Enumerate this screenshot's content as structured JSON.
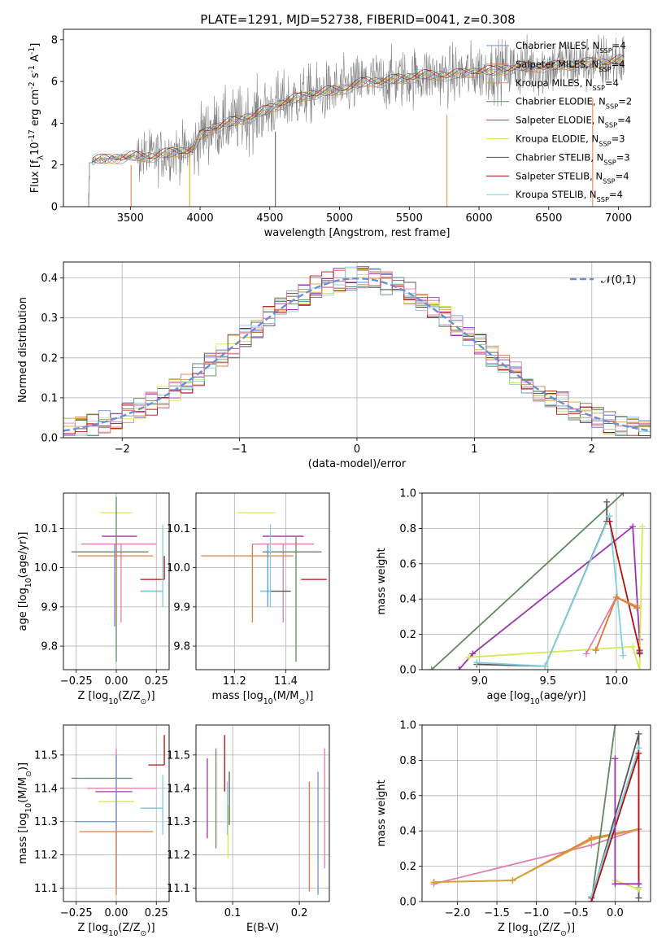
{
  "figure": {
    "title": "PLATE=1291, MJD=52738, FIBERID=0041, z=0.308"
  },
  "colors": [
    "#6b8fd6",
    "#e07a45",
    "#d9a030",
    "#5f8a5f",
    "#9a35b0",
    "#d8e850",
    "#555555",
    "#b01010",
    "#80d0e0",
    "#e080b0",
    "#707070"
  ],
  "chart_data": [
    {
      "id": "spectrum",
      "type": "line",
      "xlabel": "wavelength [Angstrom, rest frame]",
      "ylabel": "Flux [f$_\\lambda$10$^{-17}$ erg cm$^{-2}$ s$^{-1}$ A$^{-1}$]",
      "xlim": [
        3020,
        7230
      ],
      "ylim": [
        0,
        8.5
      ],
      "xticks": [
        3500,
        4000,
        4500,
        5000,
        5500,
        6000,
        6500,
        7000
      ],
      "yticks": [
        0,
        2,
        4,
        6,
        8
      ],
      "grid": false,
      "legend_placement": "top-right",
      "observed_continuum": {
        "x": [
          3200,
          3350,
          3500,
          3650,
          3800,
          3950,
          4000,
          4100,
          4200,
          4300,
          4400,
          4500,
          4600,
          4700,
          4800,
          4900,
          5000,
          5100,
          5200,
          5300,
          5400,
          5500,
          5600,
          5700,
          5800,
          5900,
          6000,
          6100,
          6200,
          6300,
          6400,
          6500,
          6600,
          6700,
          6800,
          6900,
          7000,
          7040
        ],
        "y": [
          2.2,
          2.3,
          2.4,
          2.4,
          2.6,
          2.7,
          3.4,
          3.8,
          4.0,
          4.2,
          4.4,
          4.7,
          5.0,
          5.2,
          5.4,
          5.5,
          5.6,
          5.8,
          6.0,
          6.0,
          6.1,
          6.2,
          6.3,
          6.3,
          6.3,
          6.4,
          6.5,
          6.5,
          6.6,
          6.7,
          6.7,
          6.7,
          6.8,
          6.8,
          6.9,
          6.9,
          7.0,
          7.0
        ]
      },
      "series": [
        {
          "name": "Chabrier MILES, N$_{SSP}$=4",
          "color": "#6b8fd6"
        },
        {
          "name": "Salpeter MILES, N$_{SSP}$=4",
          "color": "#e07a45"
        },
        {
          "name": "Kroupa MILES, N$_{SSP}$=4",
          "color": "#d9a030"
        },
        {
          "name": "Chabrier ELODIE, N$_{SSP}$=2",
          "color": "#5f8a5f"
        },
        {
          "name": "Salpeter ELODIE, N$_{SSP}$=4",
          "color": "#9a35b0"
        },
        {
          "name": "Kroupa ELODIE, N$_{SSP}$=3",
          "color": "#d8e850"
        },
        {
          "name": "Chabrier STELIB, N$_{SSP}$=3",
          "color": "#555555"
        },
        {
          "name": "Salpeter STELIB, N$_{SSP}$=4",
          "color": "#b01010"
        },
        {
          "name": "Kroupa STELIB, N$_{SSP}$=4",
          "color": "#80d0e0"
        }
      ]
    },
    {
      "id": "residuals",
      "type": "line",
      "xlabel": "(data-model)/error",
      "ylabel": "Normed distribution",
      "xlim": [
        -2.5,
        2.5
      ],
      "ylim": [
        0,
        0.44
      ],
      "xticks": [
        -2,
        -1,
        0,
        1,
        2
      ],
      "yticks": [
        0.0,
        0.1,
        0.2,
        0.3,
        0.4
      ],
      "grid": true,
      "legend_placement": "top-right",
      "legend": "$\\mathcal{N}(0,1)$",
      "gaussian_color": "#6b8fd6",
      "histogram_bins": [
        -2.5,
        2.5,
        50
      ]
    },
    {
      "id": "age_vs_Z",
      "type": "scatter",
      "xlabel": "Z [log$_{10}$(Z/Z$_\\odot$)]",
      "ylabel": "age  [log$_{10}$(age/yr)]",
      "xlim": [
        -0.33,
        0.33
      ],
      "ylim": [
        9.74,
        10.19
      ],
      "xticks": [
        -0.25,
        0.0,
        0.25
      ],
      "yticks": [
        9.8,
        9.9,
        10.0,
        10.1
      ],
      "grid": true,
      "errorbars": [
        {
          "color": "#707070",
          "x": 0.0,
          "y": 10.14,
          "xerr": [
            0.0,
            0.0
          ],
          "yerr": [
            0.0,
            0.0
          ]
        },
        {
          "color": "#d8e850",
          "x": 0.0,
          "y": 10.14,
          "xerr": [
            0.1,
            0.1
          ],
          "yerr": [
            0.0,
            0.0
          ]
        },
        {
          "color": "#e080b0",
          "x": 0.03,
          "y": 10.06,
          "xerr": [
            0.25,
            0.22
          ],
          "yerr": [
            0.2,
            0.0
          ]
        },
        {
          "color": "#9a35b0",
          "x": 0.03,
          "y": 10.08,
          "xerr": [
            0.12,
            0.1
          ],
          "yerr": [
            0.0,
            0.0
          ]
        },
        {
          "color": "#5f8a5f",
          "x": 0.0,
          "y": 10.04,
          "xerr": [
            0.28,
            0.2
          ],
          "yerr": [
            0.28,
            0.14
          ]
        },
        {
          "color": "#e07a45",
          "x": 0.0,
          "y": 10.03,
          "xerr": [
            0.24,
            0.23
          ],
          "yerr": [
            0.17,
            0.03
          ]
        },
        {
          "color": "#b01010",
          "x": 0.3,
          "y": 9.97,
          "xerr": [
            0.15,
            0.0
          ],
          "yerr": [
            0.0,
            0.06
          ]
        },
        {
          "color": "#555555",
          "x": 0.29,
          "y": 9.94,
          "xerr": [
            0.14,
            0.0
          ],
          "yerr": [
            0.0,
            0.0
          ]
        },
        {
          "color": "#80d0e0",
          "x": 0.29,
          "y": 9.94,
          "xerr": [
            0.14,
            0.0
          ],
          "yerr": [
            0.04,
            0.17
          ]
        },
        {
          "color": "#6b8fd6",
          "x": -0.01,
          "y": 9.98,
          "xerr": [
            0.0,
            0.0
          ],
          "yerr": [
            0.13,
            0.08
          ]
        }
      ]
    },
    {
      "id": "age_vs_mass",
      "type": "scatter",
      "xlabel": "mass [log$_{10}$(M/M$_\\odot$)]",
      "ylabel": "",
      "xlim": [
        11.05,
        11.57
      ],
      "ylim": [
        9.74,
        10.19
      ],
      "xticks": [
        11.2,
        11.4
      ],
      "yticks": [
        9.8,
        9.9,
        10.0,
        10.1
      ],
      "grid": true,
      "errorbars": [
        {
          "color": "#d8e850",
          "x": 11.3,
          "y": 10.14,
          "xerr": [
            0.09,
            0.06
          ],
          "yerr": [
            0.0,
            0.0
          ]
        },
        {
          "color": "#e080b0",
          "x": 11.39,
          "y": 10.06,
          "xerr": [
            0.12,
            0.12
          ],
          "yerr": [
            0.2,
            0.0
          ]
        },
        {
          "color": "#9a35b0",
          "x": 11.39,
          "y": 10.08,
          "xerr": [
            0.08,
            0.08
          ],
          "yerr": [
            0.0,
            0.0
          ]
        },
        {
          "color": "#5f8a5f",
          "x": 11.44,
          "y": 10.04,
          "xerr": [
            0.13,
            0.1
          ],
          "yerr": [
            0.28,
            0.04
          ]
        },
        {
          "color": "#e07a45",
          "x": 11.27,
          "y": 10.03,
          "xerr": [
            0.2,
            0.16
          ],
          "yerr": [
            0.17,
            0.03
          ]
        },
        {
          "color": "#b01010",
          "x": 11.46,
          "y": 9.97,
          "xerr": [
            0.0,
            0.1
          ],
          "yerr": [
            0.0,
            0.0
          ]
        },
        {
          "color": "#555555",
          "x": 11.34,
          "y": 9.94,
          "xerr": [
            0.04,
            0.08
          ],
          "yerr": [
            0.0,
            0.0
          ]
        },
        {
          "color": "#80d0e0",
          "x": 11.34,
          "y": 9.94,
          "xerr": [
            0.04,
            0.0
          ],
          "yerr": [
            0.04,
            0.17
          ]
        },
        {
          "color": "#6b8fd6",
          "x": 11.33,
          "y": 9.98,
          "xerr": [
            0.0,
            0.0
          ],
          "yerr": [
            0.08,
            0.08
          ]
        }
      ]
    },
    {
      "id": "mass_weight_vs_age",
      "type": "line",
      "xlabel": "age  [log$_{10}$(age/yr)]",
      "ylabel": "mass weight",
      "xlim": [
        8.58,
        10.25
      ],
      "ylim": [
        0.0,
        1.0
      ],
      "xticks": [
        9.0,
        9.5,
        10.0
      ],
      "yticks": [
        0.0,
        0.2,
        0.4,
        0.6,
        0.8,
        1.0
      ],
      "grid": true,
      "series": [
        {
          "color": "#5f8a5f",
          "x": [
            8.65,
            10.05
          ],
          "y": [
            0.0,
            1.0
          ]
        },
        {
          "color": "#9a35b0",
          "x": [
            8.85,
            8.95,
            10.12,
            10.17,
            10.17
          ],
          "y": [
            0.0,
            0.09,
            0.81,
            0.17,
            0.1
          ]
        },
        {
          "color": "#d8e850",
          "x": [
            8.92,
            10.12,
            10.17,
            10.19
          ],
          "y": [
            0.07,
            0.13,
            0.0,
            0.81
          ]
        },
        {
          "color": "#555555",
          "x": [
            8.98,
            9.48,
            9.93,
            9.93
          ],
          "y": [
            0.03,
            0.02,
            0.84,
            0.95
          ]
        },
        {
          "color": "#80d0e0",
          "x": [
            8.98,
            9.48,
            9.95,
            10.05
          ],
          "y": [
            0.04,
            0.02,
            0.87,
            0.08
          ]
        },
        {
          "color": "#b01010",
          "x": [
            9.95,
            10.17,
            10.17
          ],
          "y": [
            0.84,
            0.11,
            0.09
          ]
        },
        {
          "color": "#e080b0",
          "x": [
            9.78,
            10.0,
            10.15
          ],
          "y": [
            0.09,
            0.41,
            0.35
          ]
        },
        {
          "color": "#d9a030",
          "x": [
            9.85,
            10.0,
            10.15
          ],
          "y": [
            0.11,
            0.41,
            0.36
          ]
        },
        {
          "color": "#e07a45",
          "x": [
            9.85,
            10.0,
            10.15
          ],
          "y": [
            0.11,
            0.41,
            0.35
          ]
        }
      ]
    },
    {
      "id": "mass_vs_Z",
      "type": "scatter",
      "xlabel": "Z [log$_{10}$(Z/Z$_\\odot$)]",
      "ylabel": "mass [log$_{10}$(M/M$_\\odot$)]",
      "xlim": [
        -0.33,
        0.33
      ],
      "ylim": [
        11.06,
        11.59
      ],
      "xticks": [
        -0.25,
        0.0,
        0.25
      ],
      "yticks": [
        11.1,
        11.2,
        11.3,
        11.4,
        11.5
      ],
      "grid": true,
      "errorbars": [
        {
          "color": "#b01010",
          "x": 0.3,
          "y": 11.47,
          "xerr": [
            0.1,
            0.0
          ],
          "yerr": [
            0.0,
            0.09
          ]
        },
        {
          "color": "#5f8a5f",
          "x": -0.1,
          "y": 11.43,
          "xerr": [
            0.18,
            0.2
          ],
          "yerr": [
            0.0,
            0.0
          ]
        },
        {
          "color": "#e080b0",
          "x": 0.0,
          "y": 11.4,
          "xerr": [
            0.18,
            0.25
          ],
          "yerr": [
            0.12,
            0.12
          ]
        },
        {
          "color": "#9a35b0",
          "x": 0.0,
          "y": 11.39,
          "xerr": [
            0.13,
            0.1
          ],
          "yerr": [
            0.0,
            0.0
          ]
        },
        {
          "color": "#d8e850",
          "x": 0.0,
          "y": 11.36,
          "xerr": [
            0.11,
            0.11
          ],
          "yerr": [
            0.15,
            0.0
          ]
        },
        {
          "color": "#555555",
          "x": 0.29,
          "y": 11.34,
          "xerr": [
            0.14,
            0.0
          ],
          "yerr": [
            0.0,
            0.0
          ]
        },
        {
          "color": "#80d0e0",
          "x": 0.29,
          "y": 11.34,
          "xerr": [
            0.14,
            0.0
          ],
          "yerr": [
            0.08,
            0.1
          ]
        },
        {
          "color": "#6b8fd6",
          "x": 0.0,
          "y": 11.3,
          "xerr": [
            0.26,
            0.0
          ],
          "yerr": [
            0.2,
            0.2
          ]
        },
        {
          "color": "#e07a45",
          "x": 0.0,
          "y": 11.27,
          "xerr": [
            0.23,
            0.23
          ],
          "yerr": [
            0.19,
            0.0
          ]
        }
      ]
    },
    {
      "id": "mass_vs_ebv",
      "type": "scatter",
      "xlabel": "E(B-V)",
      "ylabel": "",
      "xlim": [
        0.045,
        0.245
      ],
      "ylim": [
        11.06,
        11.59
      ],
      "xticks": [
        0.1,
        0.2
      ],
      "yticks": [
        11.1,
        11.2,
        11.3,
        11.4,
        11.5
      ],
      "grid": true,
      "errorbars": [
        {
          "color": "#9a35b0",
          "x": 0.062,
          "y": 11.37,
          "xerr": [
            0.0,
            0.0
          ],
          "yerr": [
            0.12,
            0.12
          ]
        },
        {
          "color": "#5f8a5f",
          "x": 0.075,
          "y": 11.37,
          "xerr": [
            0.0,
            0.0
          ],
          "yerr": [
            0.15,
            0.15
          ]
        },
        {
          "color": "#b01010",
          "x": 0.088,
          "y": 11.47,
          "xerr": [
            0.0,
            0.0
          ],
          "yerr": [
            0.08,
            0.09
          ]
        },
        {
          "color": "#d8e850",
          "x": 0.093,
          "y": 11.3,
          "xerr": [
            0.0,
            0.0
          ],
          "yerr": [
            0.11,
            0.05
          ]
        },
        {
          "color": "#555555",
          "x": 0.095,
          "y": 11.37,
          "xerr": [
            0.0,
            0.0
          ],
          "yerr": [
            0.08,
            0.08
          ]
        },
        {
          "color": "#80d0e0",
          "x": 0.092,
          "y": 11.34,
          "xerr": [
            0.0,
            0.0
          ],
          "yerr": [
            0.08,
            0.08
          ]
        },
        {
          "color": "#e07a45",
          "x": 0.215,
          "y": 11.25,
          "xerr": [
            0.0,
            0.0
          ],
          "yerr": [
            0.16,
            0.17
          ]
        },
        {
          "color": "#6b8fd6",
          "x": 0.228,
          "y": 11.27,
          "xerr": [
            0.0,
            0.0
          ],
          "yerr": [
            0.19,
            0.18
          ]
        },
        {
          "color": "#e080b0",
          "x": 0.238,
          "y": 11.34,
          "xerr": [
            0.0,
            0.0
          ],
          "yerr": [
            0.18,
            0.18
          ]
        }
      ]
    },
    {
      "id": "mass_weight_vs_Z",
      "type": "line",
      "xlabel": "Z [log$_{10}$(Z/Z$_\\odot$)]",
      "ylabel": "mass weight",
      "xlim": [
        -2.45,
        0.45
      ],
      "ylim": [
        0.0,
        1.0
      ],
      "xticks": [
        -2.0,
        -1.5,
        -1.0,
        -0.5,
        0.0
      ],
      "yticks": [
        0.0,
        0.2,
        0.4,
        0.6,
        0.8,
        1.0
      ],
      "grid": true,
      "series": [
        {
          "color": "#e080b0",
          "x": [
            -2.3,
            -0.3,
            0.3
          ],
          "y": [
            0.1,
            0.32,
            0.41
          ]
        },
        {
          "color": "#e07a45",
          "x": [
            -2.3,
            -1.3,
            -0.3,
            0.3
          ],
          "y": [
            0.11,
            0.12,
            0.36,
            0.41
          ]
        },
        {
          "color": "#d9a030",
          "x": [
            -2.3,
            -1.3,
            -0.3,
            0.3
          ],
          "y": [
            0.11,
            0.12,
            0.35,
            0.41
          ]
        },
        {
          "color": "#5f8a5f",
          "x": [
            -0.3,
            0.0
          ],
          "y": [
            0.0,
            1.0
          ]
        },
        {
          "color": "#555555",
          "x": [
            -0.3,
            0.3,
            0.3
          ],
          "y": [
            0.02,
            0.95,
            0.02
          ]
        },
        {
          "color": "#80d0e0",
          "x": [
            -0.3,
            0.3,
            0.3
          ],
          "y": [
            0.03,
            0.87,
            0.08
          ]
        },
        {
          "color": "#b01010",
          "x": [
            -0.3,
            0.3,
            0.3
          ],
          "y": [
            0.0,
            0.84,
            0.1
          ]
        },
        {
          "color": "#d8e850",
          "x": [
            0.0,
            0.0,
            0.3
          ],
          "y": [
            0.81,
            0.12,
            0.07
          ]
        },
        {
          "color": "#9a35b0",
          "x": [
            0.0,
            0.0,
            0.3
          ],
          "y": [
            0.81,
            0.1,
            0.1
          ]
        }
      ]
    }
  ]
}
